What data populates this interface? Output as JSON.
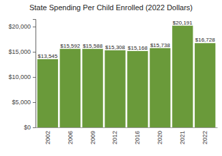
{
  "chart_data": {
    "type": "bar",
    "title": "State Spending Per Child Enrolled (2022 Dollars)",
    "categories": [
      "2002",
      "2006",
      "2009",
      "2012",
      "2016",
      "2020",
      "2021",
      "2022"
    ],
    "values": [
      13545,
      15592,
      15588,
      15308,
      15168,
      15738,
      20191,
      16728
    ],
    "value_labels": [
      "$13,545",
      "$15,592",
      "$15,588",
      "$15,308",
      "$15,168",
      "$15,738",
      "$20,191",
      "$16,728"
    ],
    "data_labels": true,
    "color": "#6a9a3a",
    "ylim": [
      0,
      21500
    ],
    "yticks": [
      {
        "value": 0,
        "label": "$0"
      },
      {
        "value": 5000,
        "label": "$5,000"
      },
      {
        "value": 10000,
        "label": "$10,000"
      },
      {
        "value": 15000,
        "label": "$15,000"
      },
      {
        "value": 20000,
        "label": "$20,000"
      }
    ],
    "grid": false
  }
}
